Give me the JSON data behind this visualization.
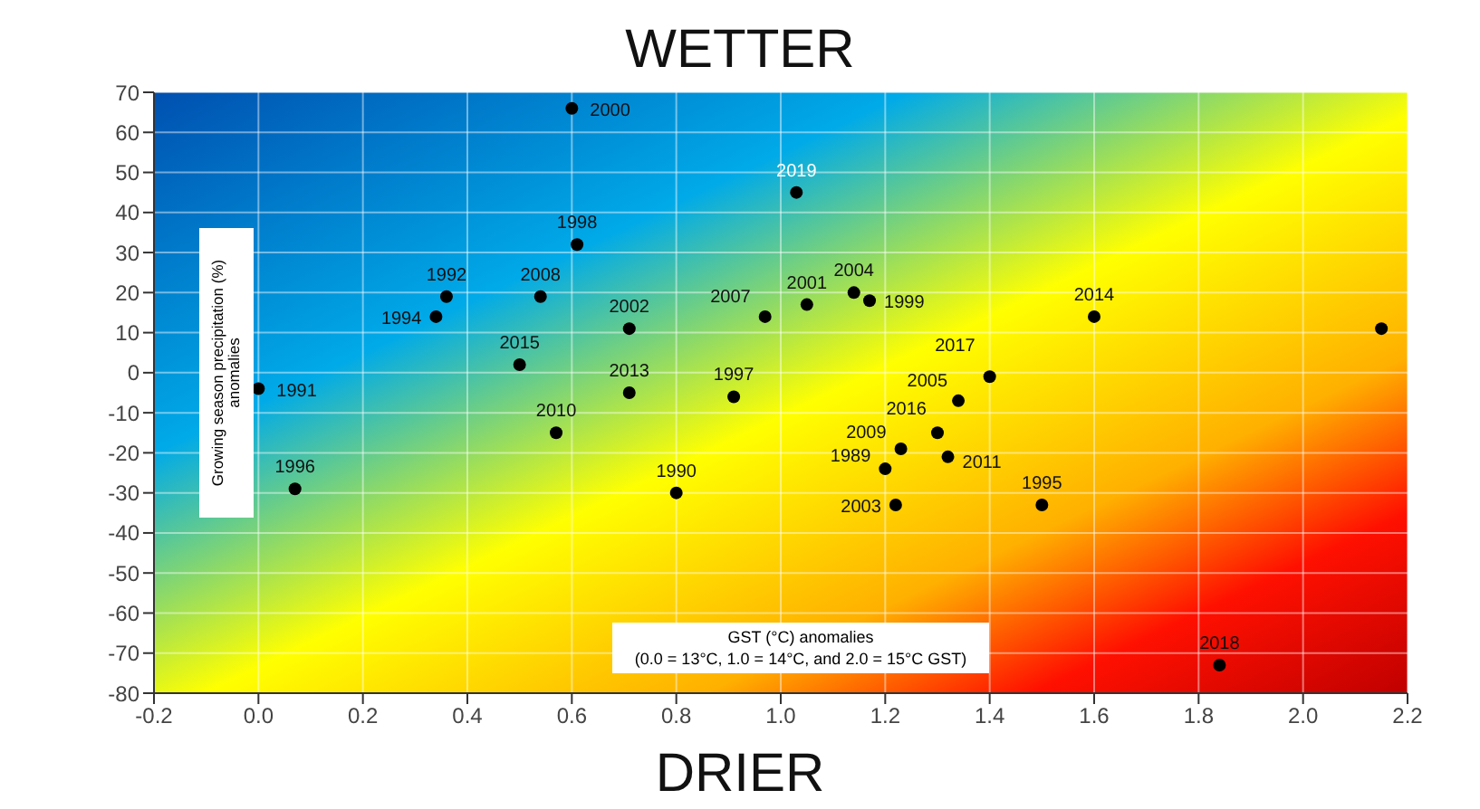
{
  "chart_data": {
    "type": "scatter",
    "xlabel": "GST (°C) anomalies",
    "ylabel": "Growing season precipitation (%) anomalies",
    "x": [
      0.6,
      1.03,
      0.61,
      0.36,
      0.54,
      0.34,
      0.71,
      0.5,
      0.97,
      1.05,
      1.14,
      1.17,
      1.6,
      1.4,
      0.0,
      0.71,
      0.91,
      0.57,
      0.07,
      0.8,
      1.34,
      1.3,
      1.23,
      1.2,
      1.32,
      1.22,
      1.5,
      1.84,
      2.15
    ],
    "series": [
      {
        "color": "#000000",
        "values": [
          66,
          45,
          32,
          19,
          19,
          14,
          11,
          2,
          14,
          17,
          20,
          18,
          14,
          -1,
          -4,
          -5,
          -6,
          -15,
          -29,
          -30,
          -7,
          -15,
          -19,
          -24,
          -21,
          -33,
          -33,
          -73,
          11
        ]
      }
    ],
    "xlim": [
      -0.2,
      2.2
    ],
    "xticks": [
      {
        "value": -0.2,
        "label": "-0.2"
      },
      {
        "value": 0,
        "label": "0.0"
      },
      {
        "value": 0.2,
        "label": "0.2"
      },
      {
        "value": 0.4,
        "label": "0.4"
      },
      {
        "value": 0.6,
        "label": "0.6"
      },
      {
        "value": 0.8,
        "label": "0.8"
      },
      {
        "value": 1,
        "label": "1.0"
      },
      {
        "value": 1.2,
        "label": "1.2"
      },
      {
        "value": 1.4,
        "label": "1.4"
      },
      {
        "value": 1.6,
        "label": "1.6"
      },
      {
        "value": 1.8,
        "label": "1.8"
      },
      {
        "value": 2,
        "label": "2.0"
      },
      {
        "value": 2.2,
        "label": "2.2"
      }
    ],
    "ylim": [
      -80,
      70
    ],
    "yticks": [
      -80,
      -70,
      -60,
      -50,
      -40,
      -30,
      -20,
      -10,
      0,
      10,
      20,
      30,
      40,
      50,
      60,
      70
    ],
    "grid": true,
    "legend": false,
    "marker": "circle",
    "annotations": [
      "WETTER",
      "DRIER",
      "(0.0 = 13°C, 1.0 = 14°C, and 2.0 = 15°C GST)",
      {
        "text": "2000",
        "x": 0.6,
        "y": 66
      },
      {
        "text": "2019",
        "x": 1.03,
        "y": 45
      },
      {
        "text": "1998",
        "x": 0.61,
        "y": 32
      },
      {
        "text": "1992",
        "x": 0.36,
        "y": 19
      },
      {
        "text": "2008",
        "x": 0.54,
        "y": 19
      },
      {
        "text": "1994",
        "x": 0.34,
        "y": 14
      },
      {
        "text": "2002",
        "x": 0.71,
        "y": 11
      },
      {
        "text": "2015",
        "x": 0.5,
        "y": 2
      },
      {
        "text": "2007",
        "x": 0.97,
        "y": 14
      },
      {
        "text": "2001",
        "x": 1.05,
        "y": 17
      },
      {
        "text": "2004",
        "x": 1.14,
        "y": 20
      },
      {
        "text": "1999",
        "x": 1.17,
        "y": 18
      },
      {
        "text": "2014",
        "x": 1.6,
        "y": 14
      },
      {
        "text": "2017",
        "x": 1.4,
        "y": -1
      },
      {
        "text": "1991",
        "x": 0.0,
        "y": -4
      },
      {
        "text": "2013",
        "x": 0.71,
        "y": -5
      },
      {
        "text": "1997",
        "x": 0.91,
        "y": -6
      },
      {
        "text": "2010",
        "x": 0.57,
        "y": -15
      },
      {
        "text": "1996",
        "x": 0.07,
        "y": -29
      },
      {
        "text": "1990",
        "x": 0.8,
        "y": -30
      },
      {
        "text": "2005",
        "x": 1.34,
        "y": -7
      },
      {
        "text": "2016",
        "x": 1.3,
        "y": -15
      },
      {
        "text": "2009",
        "x": 1.23,
        "y": -19
      },
      {
        "text": "1989",
        "x": 1.2,
        "y": -24
      },
      {
        "text": "2011",
        "x": 1.32,
        "y": -21
      },
      {
        "text": "2003",
        "x": 1.22,
        "y": -33
      },
      {
        "text": "1995",
        "x": 1.5,
        "y": -33
      },
      {
        "text": "2018",
        "x": 1.84,
        "y": -73
      }
    ]
  }
}
